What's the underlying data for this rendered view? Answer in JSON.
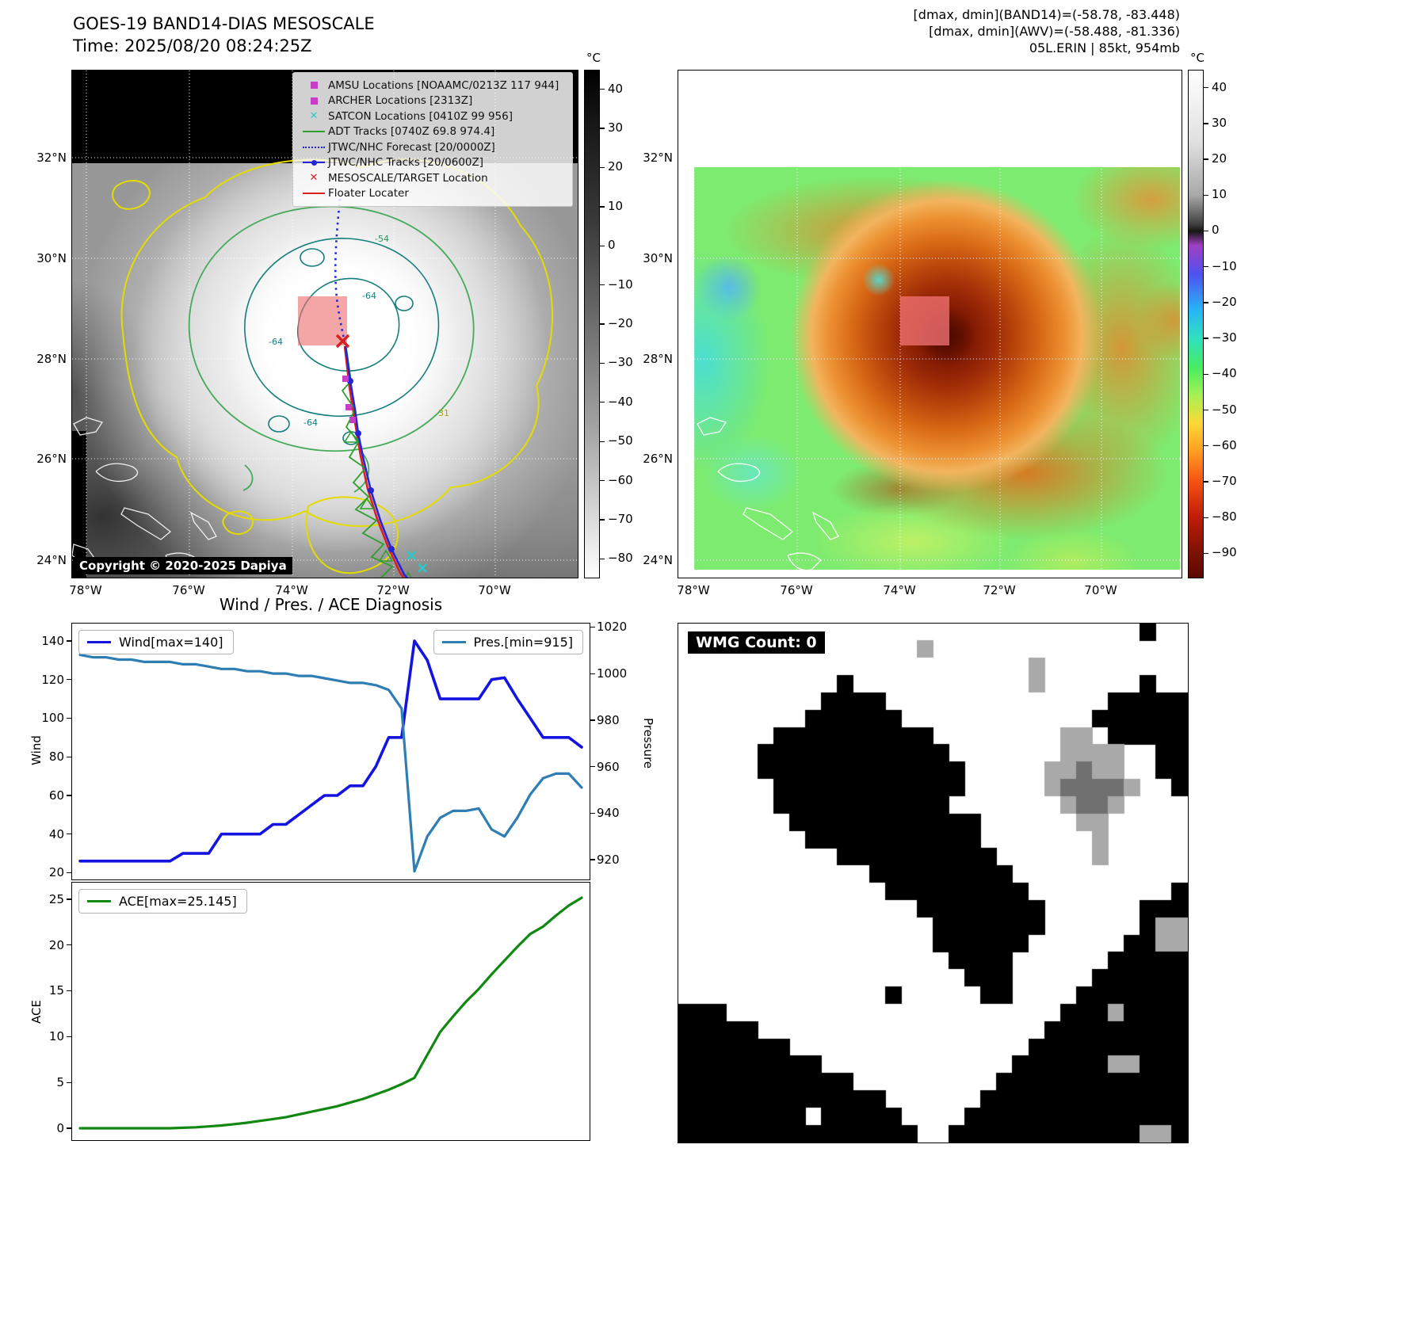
{
  "map1": {
    "title": "GOES-19 BAND14-DIAS MESOSCALE",
    "time_line": "Time: 2025/08/20 08:24:25Z",
    "copyright": "Copyright © 2020-2025 Dapiya",
    "colorbar_unit": "°C",
    "colorbar_ticks": [
      40,
      30,
      20,
      10,
      0,
      -10,
      -20,
      -30,
      -40,
      -50,
      -60,
      -70,
      -80
    ],
    "lat_ticks": [
      "32°N",
      "30°N",
      "28°N",
      "26°N",
      "24°N"
    ],
    "lon_ticks": [
      "78°W",
      "76°W",
      "74°W",
      "72°W",
      "70°W"
    ],
    "legend_items": [
      {
        "label": "AMSU Locations [NOAAMC/0213Z 117 944]",
        "marker": "square",
        "color": "#c83cc8"
      },
      {
        "label": "ARCHER Locations [2313Z]",
        "marker": "square",
        "color": "#c83cc8"
      },
      {
        "label": "SATCON Locations [0410Z 99 956]",
        "marker": "x",
        "color": "#2cc8c8"
      },
      {
        "label": "ADT Tracks [0740Z 69.8 974.4]",
        "marker": "line",
        "color": "#2e9e2e"
      },
      {
        "label": "JTWC/NHC Forecast [20/0000Z]",
        "marker": "dotted-line",
        "color": "#2525d8"
      },
      {
        "label": "JTWC/NHC Tracks [20/0600Z]",
        "marker": "line-dot",
        "color": "#2525d8"
      },
      {
        "label": "MESOSCALE/TARGET Location",
        "marker": "X",
        "color": "#d92020"
      },
      {
        "label": "Floater Locater",
        "marker": "line",
        "color": "#d92020"
      }
    ],
    "contour_labels": [
      "-54",
      "-64",
      "-64",
      "-64",
      "31"
    ]
  },
  "map2": {
    "header_lines": [
      "[dmax, dmin](BAND14)=(-58.78, -83.448)",
      "[dmax, dmin](AWV)=(-58.488, -81.336)",
      "05L.ERIN | 85kt, 954mb"
    ],
    "colorbar_unit": "°C",
    "colorbar_ticks": [
      40,
      30,
      20,
      10,
      0,
      -10,
      -20,
      -30,
      -40,
      -50,
      -60,
      -70,
      -80,
      -90
    ],
    "lat_ticks": [
      "32°N",
      "30°N",
      "28°N",
      "26°N",
      "24°N"
    ],
    "lon_ticks": [
      "78°W",
      "76°W",
      "74°W",
      "72°W",
      "70°W"
    ]
  },
  "chart_data": [
    {
      "type": "line",
      "title": "Wind / Pres. / ACE Diagnosis",
      "ylabel_left": "Wind",
      "ylabel_right": "Pressure",
      "yticks_left": [
        20,
        40,
        60,
        80,
        100,
        120,
        140
      ],
      "yticks_right": [
        920,
        940,
        960,
        980,
        1000,
        1020
      ],
      "ylim_left": [
        16.5,
        149
      ],
      "ylim_right": [
        911.5,
        1021.5
      ],
      "legend_position": "top-left / top-right",
      "series": [
        {
          "name": "Wind[max=140]",
          "axis": "left",
          "color": "#1414e0",
          "width": 3.6,
          "values": [
            26,
            26,
            26,
            26,
            26,
            26,
            26,
            26,
            30,
            30,
            30,
            40,
            40,
            40,
            40,
            45,
            45,
            50,
            55,
            60,
            60,
            65,
            65,
            75,
            90,
            90,
            140,
            130,
            110,
            110,
            110,
            110,
            120,
            121,
            110,
            100,
            90,
            90,
            90,
            85
          ]
        },
        {
          "name": "Pres.[min=915]",
          "axis": "right",
          "color": "#2e7eb4",
          "width": 3.2,
          "values": [
            1008,
            1007,
            1007,
            1006,
            1006,
            1005,
            1005,
            1005,
            1004,
            1004,
            1003,
            1002,
            1002,
            1001,
            1001,
            1000,
            1000,
            999,
            999,
            998,
            997,
            996,
            996,
            995,
            993,
            985,
            915,
            930,
            938,
            941,
            941,
            942,
            933,
            930,
            938,
            948,
            955,
            957,
            957,
            951
          ]
        }
      ]
    },
    {
      "type": "line",
      "ylabel_left": "ACE",
      "yticks_left": [
        0,
        5,
        10,
        15,
        20,
        25
      ],
      "ylim_left": [
        -1.3,
        26.8
      ],
      "legend_position": "top-left",
      "series": [
        {
          "name": "ACE[max=25.145]",
          "axis": "left",
          "color": "#118811",
          "width": 3.2,
          "values": [
            0,
            0,
            0,
            0,
            0,
            0,
            0,
            0,
            0.05,
            0.1,
            0.2,
            0.3,
            0.45,
            0.6,
            0.8,
            1.0,
            1.2,
            1.5,
            1.8,
            2.1,
            2.4,
            2.8,
            3.2,
            3.7,
            4.2,
            4.8,
            5.5,
            8.0,
            10.5,
            12.2,
            13.8,
            15.2,
            16.8,
            18.3,
            19.8,
            21.2,
            22.0,
            23.2,
            24.3,
            25.145
          ]
        }
      ]
    }
  ],
  "wmg": {
    "label": "WMG Count: 0",
    "palette": {
      ".": "#ffffff",
      "#": "#000000",
      "g": "#a9a9a9",
      "d": "#707070"
    },
    "grid": [
      ".............................#..",
      "...............g................",
      "......................g.........",
      "..........#...........g......#..",
      ".........####..............#####",
      "........######............######",
      "......##########........gg.#####",
      ".....############.......gggg..##",
      ".....#############.....ggdgg..##",
      "......############.....gddddg..#",
      "......###########.......gddg....",
      ".......############......gg.....",
      "........###########.......g.....",
      "..........##########......g.....",
      "............#########...........",
      ".............#########.........#",
      "...............########......###",
      "................#######......#gg",
      "................######......##gg",
      ".................####......#####",
      "..................###.....######",
      ".............#.....##....#######",
      "###.....................###g####",
      "#####..................#########",
      "#######...............##########",
      "#########............######gg###",
      "###########.........############",
      "#############......#############",
      "########.#####....##############",
      "###############..############gg#"
    ]
  }
}
